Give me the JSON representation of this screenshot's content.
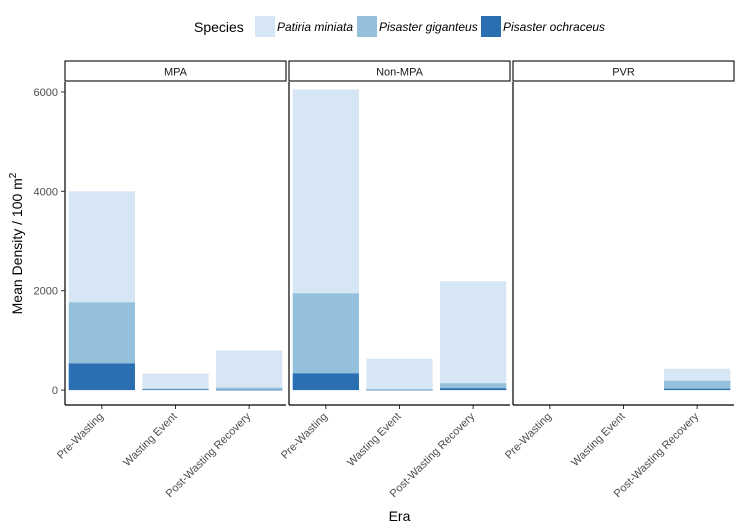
{
  "chart_data": {
    "type": "bar",
    "stacked": true,
    "title": "",
    "xlabel": "Era",
    "ylabel_main": "Mean Density / 100 m",
    "ylabel_superscript": "2",
    "ylim": [
      -300,
      6200
    ],
    "yticks": [
      0,
      2000,
      4000,
      6000
    ],
    "legend": {
      "title": "Species",
      "position": "top"
    },
    "colors": {
      "Patiria miniata": "#d6e6f4",
      "Pisaster giganteus": "#95c0dc",
      "Pisaster ochraceus": "#2b6fb3"
    },
    "categories": [
      "Pre-Wasting",
      "Wasting Event",
      "Post-Wasting Recovery"
    ],
    "panels": [
      {
        "name": "MPA",
        "series": [
          {
            "name": "Pisaster ochraceus",
            "values": [
              540,
              20,
              10
            ]
          },
          {
            "name": "Pisaster giganteus",
            "values": [
              1230,
              10,
              40
            ]
          },
          {
            "name": "Patiria miniata",
            "values": [
              2230,
              300,
              750
            ]
          }
        ]
      },
      {
        "name": "Non-MPA",
        "series": [
          {
            "name": "Pisaster ochraceus",
            "values": [
              340,
              10,
              40
            ]
          },
          {
            "name": "Pisaster giganteus",
            "values": [
              1610,
              10,
              100
            ]
          },
          {
            "name": "Patiria miniata",
            "values": [
              4100,
              610,
              2050
            ]
          }
        ]
      },
      {
        "name": "PVR",
        "series": [
          {
            "name": "Pisaster ochraceus",
            "values": [
              0,
              0,
              30
            ]
          },
          {
            "name": "Pisaster giganteus",
            "values": [
              0,
              0,
              160
            ]
          },
          {
            "name": "Patiria miniata",
            "values": [
              0,
              0,
              240
            ]
          }
        ]
      }
    ]
  }
}
